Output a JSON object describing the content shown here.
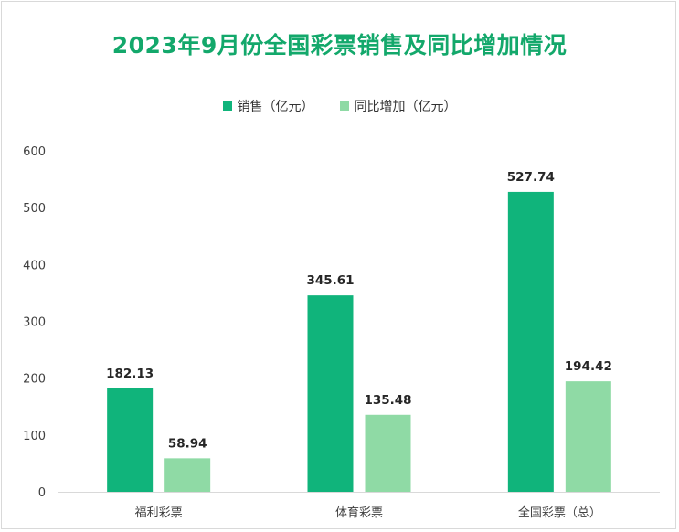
{
  "chart_data": {
    "type": "bar",
    "title": "2023年9月份全国彩票销售及同比增加情况",
    "categories": [
      "福利彩票",
      "体育彩票",
      "全国彩票（总）"
    ],
    "series": [
      {
        "name": "销售（亿元）",
        "values": [
          182.13,
          345.61,
          527.74
        ],
        "color": "#10b47b"
      },
      {
        "name": "同比增加（亿元）",
        "values": [
          58.94,
          135.48,
          194.42
        ],
        "color": "#8fdaa5"
      }
    ],
    "data_labels": [
      [
        "182.13",
        "345.61",
        "527.74"
      ],
      [
        "58.94",
        "135.48",
        "194.42"
      ]
    ],
    "ylim": [
      0,
      600
    ],
    "yticks": [
      0,
      100,
      200,
      300,
      400,
      500,
      600
    ],
    "ytick_labels": [
      "0",
      "100",
      "200",
      "300",
      "400",
      "500",
      "600"
    ],
    "legend_position": "top-center",
    "grid": false
  }
}
